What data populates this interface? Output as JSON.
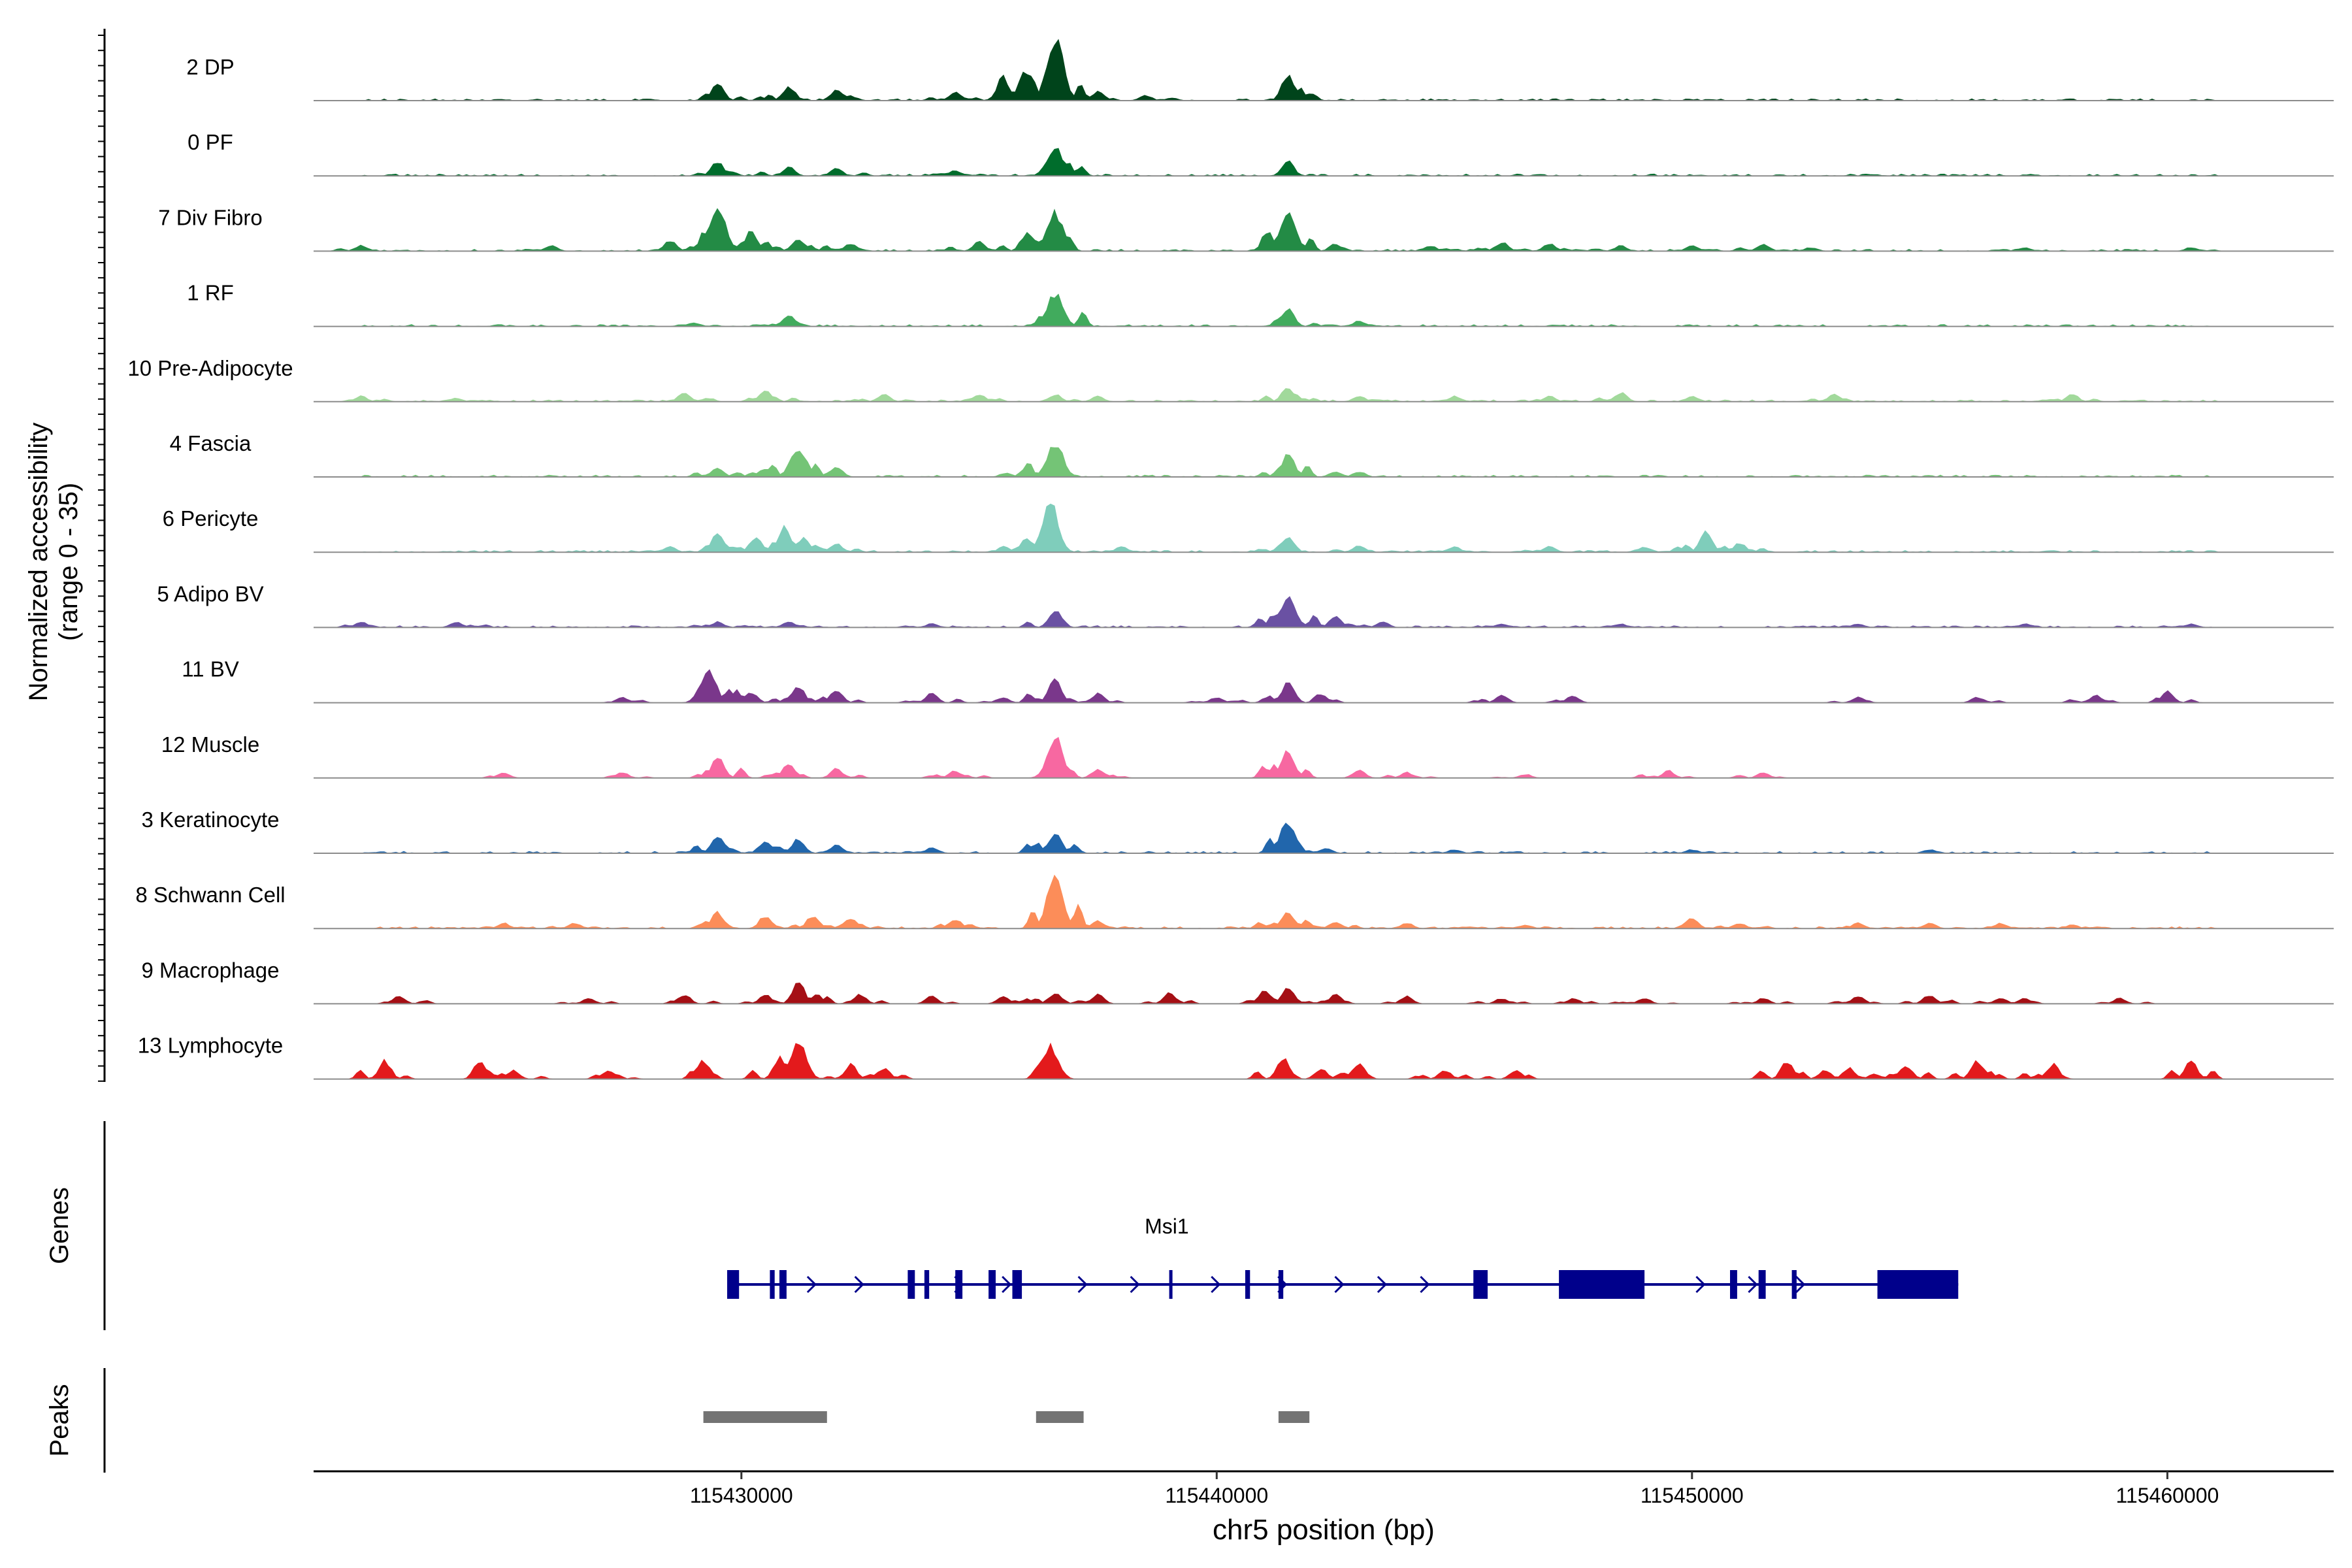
{
  "chart_data": [
    {
      "type": "area",
      "title": "",
      "ylabel_line1": "Normalized accessibility",
      "ylabel_line2": "(range 0 - 35)",
      "ylim": [
        0,
        35
      ],
      "xlim": [
        115421000,
        115463500
      ],
      "tracks": [
        {
          "name": "2 DP",
          "color": "#00441b",
          "peaks": [
            [
              115429500,
              10
            ],
            [
              115431000,
              8
            ],
            [
              115432000,
              6
            ],
            [
              115434500,
              5
            ],
            [
              115435500,
              13
            ],
            [
              115436000,
              16
            ],
            [
              115436600,
              35
            ],
            [
              115437500,
              5
            ],
            [
              115438500,
              3
            ],
            [
              115441500,
              15
            ]
          ],
          "noise": 1
        },
        {
          "name": "0 PF",
          "color": "#006d2c",
          "peaks": [
            [
              115429500,
              8
            ],
            [
              115431000,
              5
            ],
            [
              115432000,
              4
            ],
            [
              115434500,
              3
            ],
            [
              115436600,
              16
            ],
            [
              115441500,
              8
            ]
          ],
          "noise": 1
        },
        {
          "name": "7 Div Fibro",
          "color": "#238b45",
          "peaks": [
            [
              115422000,
              3
            ],
            [
              115426000,
              3
            ],
            [
              115428500,
              6
            ],
            [
              115429500,
              24
            ],
            [
              115430200,
              11
            ],
            [
              115431200,
              7
            ],
            [
              115432300,
              4
            ],
            [
              115435000,
              5
            ],
            [
              115436000,
              10
            ],
            [
              115436600,
              21
            ],
            [
              115441500,
              21
            ],
            [
              115442500,
              4
            ],
            [
              115444500,
              3
            ],
            [
              115446000,
              5
            ],
            [
              115447000,
              4
            ],
            [
              115448500,
              3
            ],
            [
              115450000,
              3
            ],
            [
              115451500,
              4
            ],
            [
              115452500,
              2
            ],
            [
              115457000,
              2
            ],
            [
              115460500,
              2
            ]
          ],
          "noise": 1
        },
        {
          "name": "1 RF",
          "color": "#41ab5d",
          "peaks": [
            [
              115429000,
              2
            ],
            [
              115431000,
              6
            ],
            [
              115436600,
              18
            ],
            [
              115441500,
              10
            ],
            [
              115443000,
              3
            ]
          ],
          "noise": 1
        },
        {
          "name": "10 Pre-Adipocyte",
          "color": "#a1d99b",
          "peaks": [
            [
              115422000,
              3
            ],
            [
              115424000,
              2
            ],
            [
              115428800,
              5
            ],
            [
              115430500,
              6
            ],
            [
              115433000,
              4
            ],
            [
              115435000,
              4
            ],
            [
              115436600,
              4
            ],
            [
              115437500,
              3
            ],
            [
              115441500,
              8
            ],
            [
              115443000,
              3
            ],
            [
              115445000,
              3
            ],
            [
              115447000,
              3
            ],
            [
              115448500,
              5
            ],
            [
              115450000,
              3
            ],
            [
              115453000,
              4
            ],
            [
              115458000,
              4
            ]
          ],
          "noise": 1
        },
        {
          "name": "4 Fascia",
          "color": "#74c476",
          "peaks": [
            [
              115429500,
              5
            ],
            [
              115430500,
              5
            ],
            [
              115431200,
              16
            ],
            [
              115432000,
              6
            ],
            [
              115436000,
              5
            ],
            [
              115436600,
              19
            ],
            [
              115441500,
              13
            ],
            [
              115442500,
              3
            ],
            [
              115443000,
              3
            ]
          ],
          "noise": 1
        },
        {
          "name": "6 Pericyte",
          "color": "#7fcdbb",
          "peaks": [
            [
              115428500,
              3
            ],
            [
              115429500,
              10
            ],
            [
              115430300,
              8
            ],
            [
              115430900,
              14
            ],
            [
              115431300,
              8
            ],
            [
              115432000,
              5
            ],
            [
              115436000,
              8
            ],
            [
              115436500,
              27
            ],
            [
              115438000,
              3
            ],
            [
              115441500,
              9
            ],
            [
              115443000,
              4
            ],
            [
              115445000,
              3
            ],
            [
              115447000,
              3
            ],
            [
              115449000,
              3
            ],
            [
              115450300,
              12
            ],
            [
              115451000,
              5
            ]
          ],
          "noise": 1
        },
        {
          "name": "5 Adipo BV",
          "color": "#6a51a3",
          "peaks": [
            [
              115422000,
              3
            ],
            [
              115424000,
              3
            ],
            [
              115429500,
              3
            ],
            [
              115431000,
              3
            ],
            [
              115434000,
              2
            ],
            [
              115436600,
              10
            ],
            [
              115441500,
              16
            ],
            [
              115442500,
              6
            ],
            [
              115443500,
              3
            ],
            [
              115446000,
              2
            ],
            [
              115448500,
              2
            ],
            [
              115453500,
              2
            ],
            [
              115457000,
              2
            ],
            [
              115460500,
              2
            ]
          ],
          "noise": 1
        },
        {
          "name": "11 BV",
          "color": "#7a378b",
          "peaks": [
            [
              115427500,
              3
            ],
            [
              115429300,
              17
            ],
            [
              115430200,
              6
            ],
            [
              115431200,
              9
            ],
            [
              115432000,
              7
            ],
            [
              115434000,
              5
            ],
            [
              115435500,
              3
            ],
            [
              115436600,
              14
            ],
            [
              115437500,
              5
            ],
            [
              115440000,
              3
            ],
            [
              115441500,
              12
            ],
            [
              115442200,
              4
            ],
            [
              115446000,
              4
            ],
            [
              115447500,
              4
            ],
            [
              115453500,
              3
            ],
            [
              115456000,
              3
            ],
            [
              115458500,
              4
            ],
            [
              115460000,
              6
            ]
          ],
          "noise": 0
        },
        {
          "name": "12 Muscle",
          "color": "#f768a1",
          "peaks": [
            [
              115425000,
              3
            ],
            [
              115427500,
              3
            ],
            [
              115429500,
              12
            ],
            [
              115431000,
              8
            ],
            [
              115432000,
              5
            ],
            [
              115434500,
              4
            ],
            [
              115436600,
              22
            ],
            [
              115437500,
              5
            ],
            [
              115441500,
              15
            ],
            [
              115443000,
              4
            ],
            [
              115444000,
              3
            ],
            [
              115446500,
              2
            ],
            [
              115449500,
              4
            ],
            [
              115451500,
              3
            ]
          ],
          "noise": 0
        },
        {
          "name": "3 Keratinocyte",
          "color": "#2166ac",
          "peaks": [
            [
              115429500,
              10
            ],
            [
              115430500,
              7
            ],
            [
              115431200,
              8
            ],
            [
              115432000,
              5
            ],
            [
              115434000,
              3
            ],
            [
              115436600,
              12
            ],
            [
              115441500,
              18
            ],
            [
              115442300,
              3
            ],
            [
              115445000,
              2
            ],
            [
              115450000,
              2
            ],
            [
              115455000,
              2
            ]
          ],
          "noise": 1
        },
        {
          "name": "8 Schwann Cell",
          "color": "#fc8d59",
          "peaks": [
            [
              115425000,
              3
            ],
            [
              115426500,
              3
            ],
            [
              115429500,
              9
            ],
            [
              115430500,
              7
            ],
            [
              115431500,
              7
            ],
            [
              115432300,
              6
            ],
            [
              115434500,
              5
            ],
            [
              115436600,
              31
            ],
            [
              115437500,
              4
            ],
            [
              115441500,
              10
            ],
            [
              115442500,
              4
            ],
            [
              115444000,
              3
            ],
            [
              115446500,
              2
            ],
            [
              115450000,
              6
            ],
            [
              115451000,
              3
            ],
            [
              115453500,
              3
            ],
            [
              115455000,
              3
            ],
            [
              115456500,
              3
            ],
            [
              115458000,
              2
            ]
          ],
          "noise": 1
        },
        {
          "name": "9 Macrophage",
          "color": "#a50f15",
          "peaks": [
            [
              115422800,
              4
            ],
            [
              115426800,
              3
            ],
            [
              115428800,
              5
            ],
            [
              115430500,
              5
            ],
            [
              115431200,
              12
            ],
            [
              115432500,
              5
            ],
            [
              115434000,
              4
            ],
            [
              115435500,
              4
            ],
            [
              115436600,
              6
            ],
            [
              115437500,
              5
            ],
            [
              115439000,
              6
            ],
            [
              115441000,
              7
            ],
            [
              115441500,
              9
            ],
            [
              115442500,
              5
            ],
            [
              115444000,
              4
            ],
            [
              115446000,
              3
            ],
            [
              115447500,
              3
            ],
            [
              115449000,
              3
            ],
            [
              115451500,
              3
            ],
            [
              115453500,
              4
            ],
            [
              115455000,
              5
            ],
            [
              115456500,
              3
            ],
            [
              115457000,
              3
            ],
            [
              115459000,
              3
            ]
          ],
          "noise": 0
        },
        {
          "name": "13 Lymphocyte",
          "color": "#e31a1c",
          "peaks": [
            [
              115422500,
              10
            ],
            [
              115424500,
              10
            ],
            [
              115425200,
              5
            ],
            [
              115427200,
              5
            ],
            [
              115429200,
              10
            ],
            [
              115430800,
              12
            ],
            [
              115431200,
              20
            ],
            [
              115432300,
              8
            ],
            [
              115433000,
              6
            ],
            [
              115436500,
              18
            ],
            [
              115441400,
              12
            ],
            [
              115442200,
              6
            ],
            [
              115443000,
              9
            ],
            [
              115444800,
              5
            ],
            [
              115446300,
              5
            ],
            [
              115452000,
              10
            ],
            [
              115452800,
              5
            ],
            [
              115453300,
              6
            ],
            [
              115454500,
              8
            ],
            [
              115456000,
              10
            ],
            [
              115457600,
              8
            ],
            [
              115460500,
              10
            ]
          ],
          "noise": 0
        }
      ]
    },
    {
      "type": "gene-track",
      "ylabel": "Genes",
      "gene": {
        "name": "Msi1",
        "start": 115429700,
        "end": 115455600,
        "exons": [
          [
            115429700,
            115429950
          ],
          [
            115430600,
            115430700
          ],
          [
            115430800,
            115430950
          ],
          [
            115433500,
            115433650
          ],
          [
            115433850,
            115433950
          ],
          [
            115434500,
            115434650
          ],
          [
            115435200,
            115435350
          ],
          [
            115435700,
            115435900
          ],
          [
            115439000,
            115439050
          ],
          [
            115440600,
            115440700
          ],
          [
            115441300,
            115441400
          ],
          [
            115445400,
            115445700
          ],
          [
            115447200,
            115449000
          ],
          [
            115450800,
            115450950
          ],
          [
            115451400,
            115451550
          ],
          [
            115452100,
            115452200
          ],
          [
            115453900,
            115455600
          ]
        ],
        "arrows": [
          115429900,
          115431500,
          115432500,
          115434600,
          115435600,
          115437200,
          115438300,
          115440000,
          115441400,
          115442600,
          115443500,
          115444400,
          115450200,
          115451300,
          115452300
        ]
      }
    },
    {
      "type": "peak-track",
      "ylabel": "Peaks",
      "peaks": [
        [
          115429200,
          115431800
        ],
        [
          115436200,
          115437200
        ],
        [
          115441300,
          115441950
        ]
      ],
      "color": "#737373"
    },
    {
      "type": "axis",
      "xlabel": "chr5 position (bp)",
      "ticks": [
        115430000,
        115440000,
        115450000,
        115460000
      ],
      "tick_labels": [
        "115430000",
        "115440000",
        "115450000",
        "115460000"
      ]
    }
  ]
}
